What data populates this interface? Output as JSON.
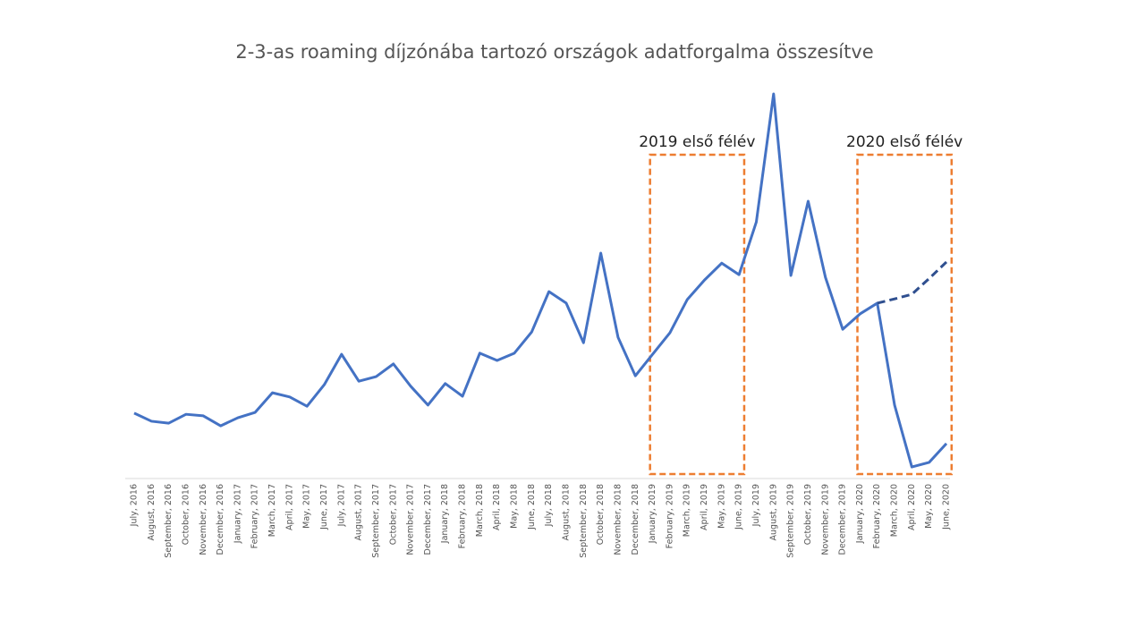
{
  "chart_data": {
    "type": "line",
    "title": "2-3-as roaming díjzónába tartozó országok adatforgalma összesítve",
    "categories": [
      "July, 2016",
      "August, 2016",
      "September, 2016",
      "October, 2016",
      "November, 2016",
      "December, 2016",
      "January, 2017",
      "February, 2017",
      "March, 2017",
      "April, 2017",
      "May, 2017",
      "June, 2017",
      "July, 2017",
      "August, 2017",
      "September, 2017",
      "October, 2017",
      "November, 2017",
      "December, 2017",
      "January, 2018",
      "February, 2018",
      "March, 2018",
      "April, 2018",
      "May, 2018",
      "June, 2018",
      "July, 2018",
      "August, 2018",
      "September, 2018",
      "October, 2018",
      "November, 2018",
      "December, 2018",
      "January, 2019",
      "February, 2019",
      "March, 2019",
      "April, 2019",
      "May, 2019",
      "June, 2019",
      "July, 2019",
      "August, 2019",
      "September, 2019",
      "October, 2019",
      "November, 2019",
      "December, 2019",
      "January, 2020",
      "February, 2020",
      "March, 2020",
      "April, 2020",
      "May, 2020",
      "June, 2020"
    ],
    "series": [
      {
        "color": "#4472c4",
        "dashed": false,
        "values": [
          17,
          14.9,
          14.4,
          16.7,
          16.3,
          13.7,
          15.8,
          17.2,
          22.3,
          21.2,
          18.8,
          24.4,
          32.3,
          25.3,
          26.5,
          29.8,
          24,
          19.1,
          24.7,
          21.4,
          32.6,
          30.7,
          32.6,
          38.1,
          48.6,
          45.6,
          35.3,
          58.6,
          36.7,
          26.7,
          32.3,
          37.9,
          46.5,
          51.6,
          56,
          53,
          66.7,
          100,
          52.8,
          72.1,
          52.3,
          38.8,
          42.8,
          45.6,
          19.1,
          3,
          4.2,
          9.1
        ]
      },
      {
        "color": "#2f4f8f",
        "dashed": true,
        "values": [
          null,
          null,
          null,
          null,
          null,
          null,
          null,
          null,
          null,
          null,
          null,
          null,
          null,
          null,
          null,
          null,
          null,
          null,
          null,
          null,
          null,
          null,
          null,
          null,
          null,
          null,
          null,
          null,
          null,
          null,
          null,
          null,
          null,
          null,
          null,
          null,
          null,
          null,
          null,
          null,
          null,
          null,
          null,
          45.6,
          46.7,
          47.9,
          52,
          56.3
        ]
      }
    ],
    "ylim": [
      0,
      100
    ],
    "annotations": [
      "2019 első félév",
      "2020 első félév"
    ],
    "annotation_color": "#ed7d31"
  }
}
